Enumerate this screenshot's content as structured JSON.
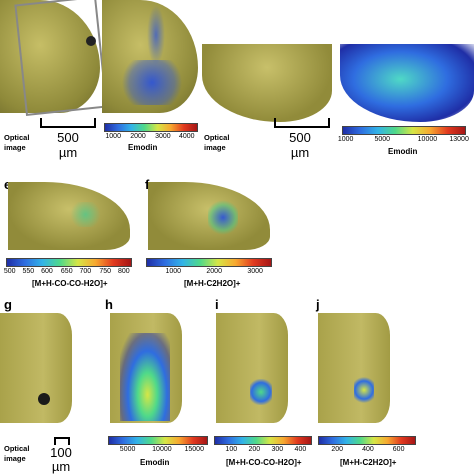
{
  "panel_letters": {
    "e": "e",
    "f": "f",
    "g": "g",
    "h": "h",
    "i": "i",
    "j": "j"
  },
  "optical_caption_top_left": [
    "Optical",
    "image"
  ],
  "optical_caption_top_right": [
    "Optical",
    "image"
  ],
  "optical_caption_bottom": [
    "Optical",
    "image"
  ],
  "scale_top_left": {
    "value": "500",
    "unit": "µm"
  },
  "scale_top_right": {
    "value": "500",
    "unit": "µm"
  },
  "scale_bottom": {
    "value": "100",
    "unit": "µm"
  },
  "colorbars": {
    "top_left": {
      "ticks": [
        "1000",
        "2000",
        "3000",
        "4000"
      ],
      "name": "Emodin"
    },
    "top_right": {
      "ticks": [
        "1000",
        "5000",
        "10000",
        "13000"
      ],
      "name": "Emodin"
    },
    "e": {
      "ticks": [
        "500",
        "550",
        "600",
        "650",
        "700",
        "750",
        "800"
      ],
      "name": "[M+H-CO-CO-H2O]+"
    },
    "f": {
      "ticks": [
        "1000",
        "2000",
        "3000"
      ],
      "name": "[M+H-C2H2O]+"
    },
    "h": {
      "ticks": [
        "5000",
        "10000",
        "15000"
      ],
      "name": "Emodin"
    },
    "i": {
      "ticks": [
        "100",
        "200",
        "300",
        "400"
      ],
      "name": "[M+H-CO-CO-H2O]+"
    },
    "j": {
      "ticks": [
        "200",
        "400",
        "600"
      ],
      "name": "[M+H-C2H2O]+"
    }
  },
  "colors": {
    "leaf": "#a9a24a",
    "leaf_dark": "#6f6b2a",
    "leaf_light": "#cfc87a",
    "low": "#1f2ea6",
    "high": "#a61616"
  }
}
